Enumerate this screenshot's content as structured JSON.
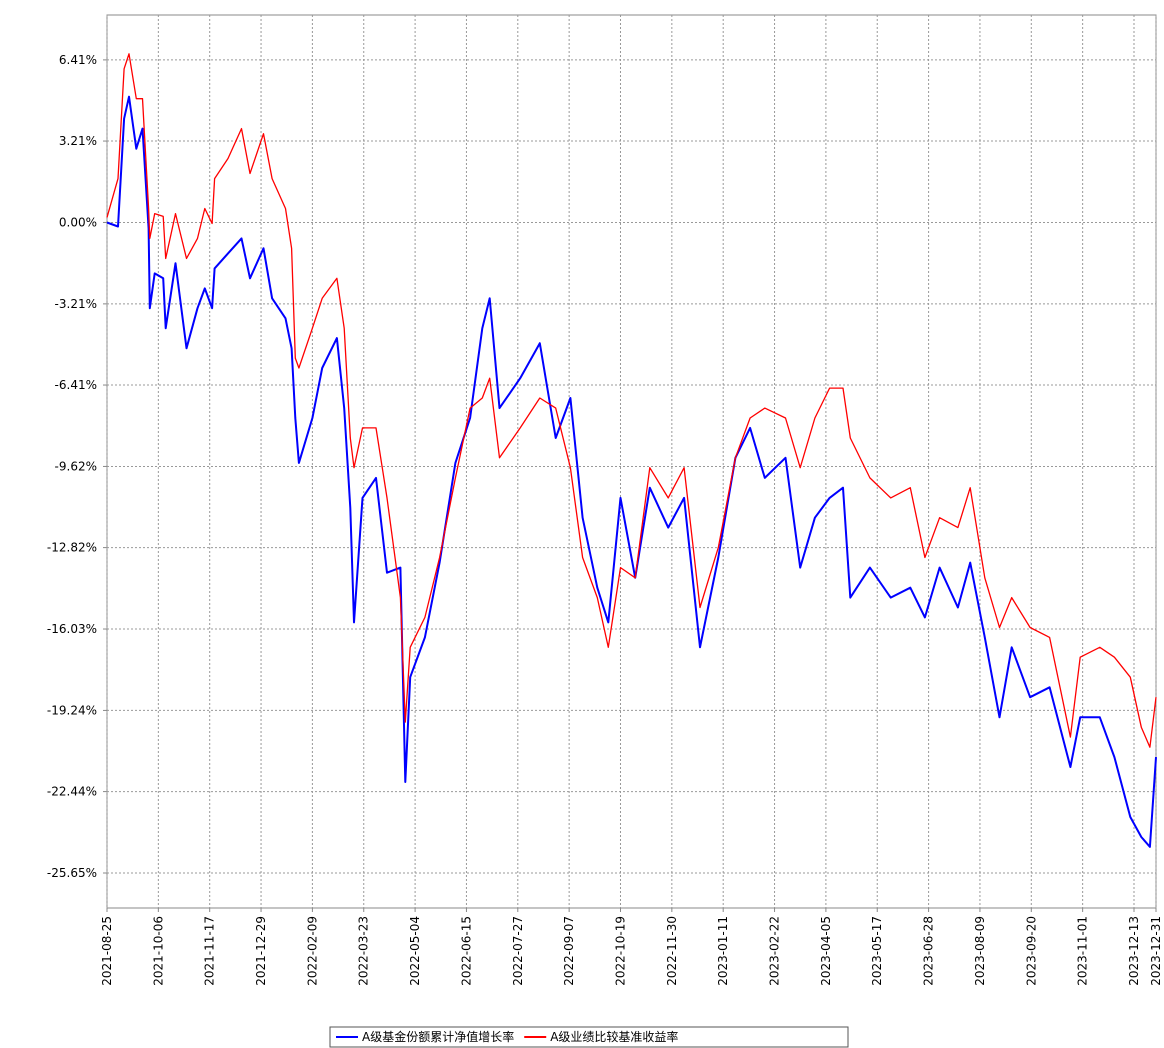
{
  "chart_data": {
    "type": "line",
    "x": [
      "2021-08-25",
      "2021-09-03",
      "2021-09-08",
      "2021-09-12",
      "2021-09-18",
      "2021-09-23",
      "2021-09-28",
      "2021-09-29",
      "2021-10-03",
      "2021-10-10",
      "2021-10-12",
      "2021-10-20",
      "2021-10-29",
      "2021-11-07",
      "2021-11-13",
      "2021-11-19",
      "2021-11-21",
      "2021-12-02",
      "2021-12-13",
      "2021-12-20",
      "2021-12-31",
      "2022-01-07",
      "2022-01-18",
      "2022-01-23",
      "2022-01-26",
      "2022-01-29",
      "2022-02-09",
      "2022-02-17",
      "2022-03-01",
      "2022-03-07",
      "2022-03-12",
      "2022-03-15",
      "2022-03-22",
      "2022-04-02",
      "2022-04-11",
      "2022-04-22",
      "2022-04-26",
      "2022-04-30",
      "2022-05-12",
      "2022-05-24",
      "2022-06-06",
      "2022-06-18",
      "2022-06-28",
      "2022-07-04",
      "2022-07-12",
      "2022-07-29",
      "2022-08-14",
      "2022-08-27",
      "2022-09-08",
      "2022-09-18",
      "2022-09-30",
      "2022-10-09",
      "2022-10-19",
      "2022-10-31",
      "2022-11-12",
      "2022-11-27",
      "2022-12-10",
      "2022-12-23",
      "2023-01-07",
      "2023-01-21",
      "2023-02-02",
      "2023-02-14",
      "2023-03-03",
      "2023-03-15",
      "2023-03-27",
      "2023-04-08",
      "2023-04-19",
      "2023-04-25",
      "2023-05-11",
      "2023-05-28",
      "2023-06-13",
      "2023-06-25",
      "2023-07-07",
      "2023-07-22",
      "2023-08-01",
      "2023-08-13",
      "2023-08-25",
      "2023-09-04",
      "2023-09-19",
      "2023-10-05",
      "2023-10-22",
      "2023-10-30",
      "2023-11-15",
      "2023-11-27",
      "2023-12-10",
      "2023-12-19",
      "2023-12-26",
      "2023-12-31"
    ],
    "series": [
      {
        "name": "A级基金份额累计净值增长率",
        "color": "#0000ff",
        "values": [
          0,
          -0.16,
          4.09,
          4.96,
          2.91,
          3.7,
          -0.24,
          -3.38,
          -2.01,
          -2.2,
          -4.17,
          -1.61,
          -4.96,
          -3.38,
          -2.6,
          -3.38,
          -1.81,
          -1.22,
          -0.63,
          -2.2,
          -1.02,
          -2.99,
          -3.78,
          -4.96,
          -7.71,
          -9.48,
          -7.71,
          -5.74,
          -4.56,
          -7.32,
          -11.25,
          -15.77,
          -10.86,
          -10.07,
          -13.81,
          -13.61,
          -22.06,
          -17.93,
          -16.36,
          -13.41,
          -9.48,
          -7.71,
          -4.17,
          -2.99,
          -7.32,
          -6.14,
          -4.76,
          -8.5,
          -6.92,
          -11.64,
          -14.4,
          -15.77,
          -10.86,
          -14.01,
          -10.46,
          -12.03,
          -10.86,
          -16.75,
          -13.21,
          -9.28,
          -8.1,
          -10.07,
          -9.28,
          -13.61,
          -11.64,
          -10.86,
          -10.46,
          -14.79,
          -13.61,
          -14.79,
          -14.4,
          -15.57,
          -13.61,
          -15.18,
          -13.41,
          -16.36,
          -19.51,
          -16.75,
          -18.72,
          -18.33,
          -21.47,
          -19.51,
          -19.51,
          -21.08,
          -23.44,
          -24.23,
          -24.62,
          -21.08
        ]
      },
      {
        "name": "A级业绩比较基准收益率",
        "color": "#ff0000",
        "values": [
          0.2,
          1.73,
          6.06,
          6.65,
          4.88,
          4.88,
          0.55,
          -0.63,
          0.35,
          0.24,
          -1.42,
          0.35,
          -1.42,
          -0.63,
          0.55,
          -0.04,
          1.73,
          2.52,
          3.7,
          1.93,
          3.5,
          1.73,
          0.55,
          -1.02,
          -5.35,
          -5.74,
          -4.17,
          -2.99,
          -2.2,
          -4.17,
          -8.5,
          -9.67,
          -8.1,
          -8.1,
          -10.86,
          -14.79,
          -19.7,
          -16.75,
          -15.57,
          -13.21,
          -10.07,
          -7.32,
          -6.92,
          -6.14,
          -9.28,
          -8.1,
          -6.92,
          -7.32,
          -9.67,
          -13.21,
          -14.79,
          -16.75,
          -13.61,
          -14.01,
          -9.67,
          -10.86,
          -9.67,
          -15.18,
          -12.82,
          -9.28,
          -7.71,
          -7.32,
          -7.71,
          -9.67,
          -7.71,
          -6.53,
          -6.53,
          -8.5,
          -10.07,
          -10.86,
          -10.46,
          -13.21,
          -11.64,
          -12.03,
          -10.46,
          -14.01,
          -15.97,
          -14.79,
          -15.97,
          -16.36,
          -20.29,
          -17.14,
          -16.75,
          -17.14,
          -17.93,
          -19.9,
          -20.69,
          -18.72
        ]
      }
    ],
    "xlim": [
      "2021-08-25",
      "2023-12-31"
    ],
    "xticks": [
      "2021-08-25",
      "2021-10-06",
      "2021-11-17",
      "2021-12-29",
      "2022-02-09",
      "2022-03-23",
      "2022-05-04",
      "2022-06-15",
      "2022-07-27",
      "2022-09-07",
      "2022-10-19",
      "2022-11-30",
      "2023-01-11",
      "2023-02-22",
      "2023-04-05",
      "2023-05-17",
      "2023-06-28",
      "2023-08-09",
      "2023-09-20",
      "2023-11-01",
      "2023-12-13",
      "2023-12-31"
    ],
    "ylim": [
      -27.03,
      8.18
    ],
    "yticks": [
      {
        "value": 6.41,
        "label": "6.41%"
      },
      {
        "value": 3.21,
        "label": "3.21%"
      },
      {
        "value": 0,
        "label": "0.00%"
      },
      {
        "value": -3.21,
        "label": "-3.21%"
      },
      {
        "value": -6.41,
        "label": "-6.41%"
      },
      {
        "value": -9.62,
        "label": "-9.62%"
      },
      {
        "value": -12.82,
        "label": "-12.82%"
      },
      {
        "value": -16.03,
        "label": "-16.03%"
      },
      {
        "value": -19.24,
        "label": "-19.24%"
      },
      {
        "value": -22.44,
        "label": "-22.44%"
      },
      {
        "value": -25.65,
        "label": "-25.65%"
      }
    ],
    "grid": true
  }
}
